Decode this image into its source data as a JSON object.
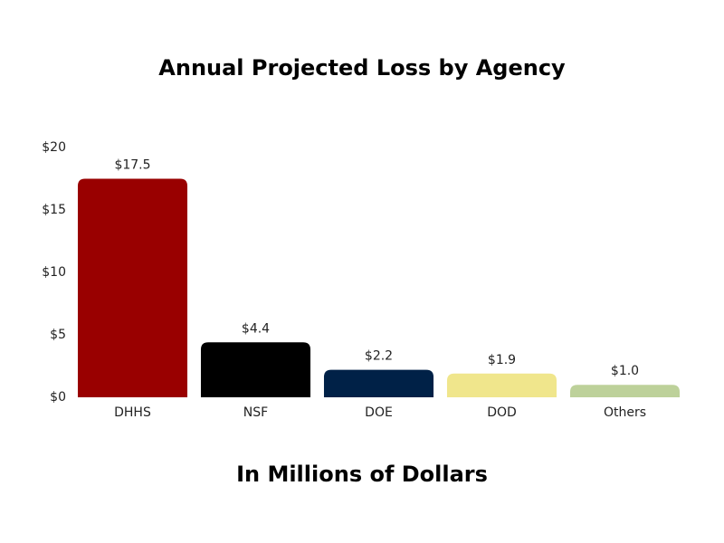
{
  "chart_data": {
    "type": "bar",
    "title": "Annual Projected Loss by Agency",
    "x_label": "In Millions of Dollars",
    "categories": [
      "DHHS",
      "NSF",
      "DOE",
      "DOD",
      "Others"
    ],
    "values": [
      17.5,
      4.4,
      2.2,
      1.9,
      1.0
    ],
    "value_labels": [
      "$17.5",
      "$4.4",
      "$2.2",
      "$1.9",
      "$1.0"
    ],
    "colors": [
      "#990000",
      "#000000",
      "#002147",
      "#f0e68c",
      "#bdd19a"
    ],
    "ylim": [
      0,
      20
    ],
    "yticks": [
      {
        "value": 0,
        "label": "$0"
      },
      {
        "value": 5,
        "label": "$5"
      },
      {
        "value": 10,
        "label": "$10"
      },
      {
        "value": 15,
        "label": "$15"
      },
      {
        "value": 20,
        "label": "$20"
      }
    ],
    "grid": false
  }
}
